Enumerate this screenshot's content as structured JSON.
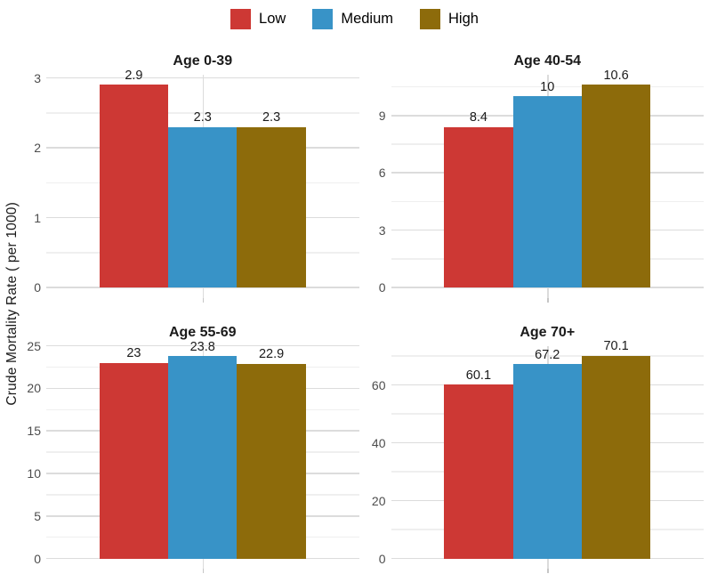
{
  "figure": {
    "y_axis_title": "Crude Mortality Rate ( per 1000)"
  },
  "colors": {
    "low": "#cd3834",
    "medium": "#3893c7",
    "high": "#8d6b0b",
    "grid_major": "#dcdcdc",
    "grid_minor": "#efefef",
    "tick_text": "#4d4d4d",
    "label_text": "#1a1a1a"
  },
  "chart_data": {
    "type": "bar",
    "layout": "2x2 faceted panels, dodged bars, legend on top, shared rotated y-axis title, white background with gray gridlines",
    "ylabel": "Crude Mortality Rate ( per 1000)",
    "legend_position": "top",
    "series": [
      {
        "name": "Low",
        "color": "#cd3834"
      },
      {
        "name": "Medium",
        "color": "#3893c7"
      },
      {
        "name": "High",
        "color": "#8d6b0b"
      }
    ],
    "facets": [
      {
        "title": "Age 0-39",
        "values": [
          2.9,
          2.3,
          2.3
        ],
        "labels": [
          "2.9",
          "2.3",
          "2.3"
        ],
        "yticks": [
          0,
          1,
          2,
          3
        ],
        "yticks_minor": [
          0.5,
          1.5,
          2.5
        ],
        "ylim": [
          0,
          3.045
        ]
      },
      {
        "title": "Age 40-54",
        "values": [
          8.4,
          10,
          10.6
        ],
        "labels": [
          "8.4",
          "10",
          "10.6"
        ],
        "yticks": [
          0,
          3,
          6,
          9
        ],
        "yticks_minor": [
          1.5,
          4.5,
          7.5,
          10.5
        ],
        "ylim": [
          0,
          11.13
        ]
      },
      {
        "title": "Age 55-69",
        "values": [
          23,
          23.8,
          22.9
        ],
        "labels": [
          "23",
          "23.8",
          "22.9"
        ],
        "yticks": [
          0,
          5,
          10,
          15,
          20,
          25
        ],
        "yticks_minor": [
          2.5,
          7.5,
          12.5,
          17.5,
          22.5
        ],
        "ylim": [
          0,
          25
        ]
      },
      {
        "title": "Age 70+",
        "values": [
          60.1,
          67.2,
          70.1
        ],
        "labels": [
          "60.1",
          "67.2",
          "70.1"
        ],
        "yticks": [
          0,
          20,
          40,
          60
        ],
        "yticks_minor": [
          10,
          30,
          50,
          70
        ],
        "ylim": [
          0,
          73.6
        ]
      }
    ]
  }
}
